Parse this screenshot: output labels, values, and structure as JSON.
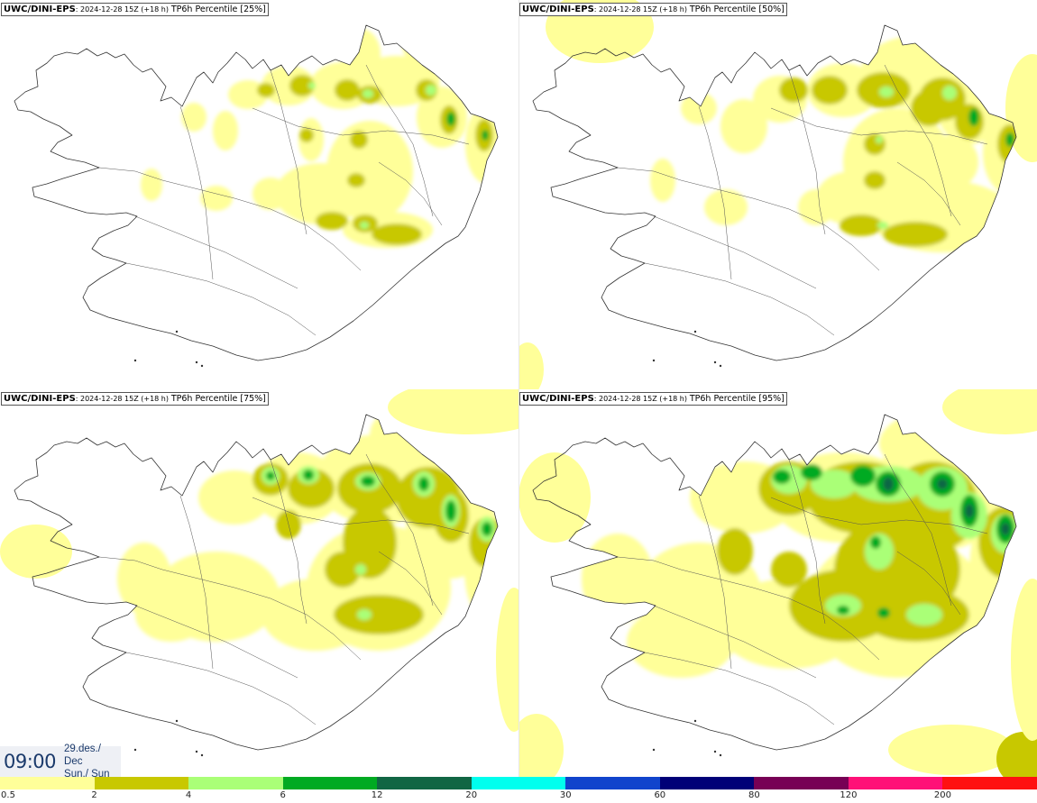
{
  "panels": [
    {
      "model": "UWC/DINI-EPS",
      "run": ": 2024-12-28 15Z (+18 h)",
      "variable": "TP6h Percentile [25%]",
      "percentile": 25
    },
    {
      "model": "UWC/DINI-EPS",
      "run": ": 2024-12-28 15Z (+18 h)",
      "variable": "TP6h Percentile [50%]",
      "percentile": 50
    },
    {
      "model": "UWC/DINI-EPS",
      "run": ": 2024-12-28 15Z (+18 h)",
      "variable": "TP6h Percentile [75%]",
      "percentile": 75
    },
    {
      "model": "UWC/DINI-EPS",
      "run": ": 2024-12-28 15Z (+18 h)",
      "variable": "TP6h Percentile [95%]",
      "percentile": 95
    }
  ],
  "valid_time": {
    "time": "09:00",
    "date": "29.des./ Dec",
    "day": "Sun./ Sun"
  },
  "legend": {
    "bins": [
      {
        "label": "0.5",
        "color": "#ffff99"
      },
      {
        "label": "2",
        "color": "#c8c800"
      },
      {
        "label": "4",
        "color": "#aaff77"
      },
      {
        "label": "6",
        "color": "#00aa22"
      },
      {
        "label": "12",
        "color": "#116644"
      },
      {
        "label": "20",
        "color": "#00ffee"
      },
      {
        "label": "30",
        "color": "#1144cc"
      },
      {
        "label": "60",
        "color": "#000077"
      },
      {
        "label": "80",
        "color": "#770055"
      },
      {
        "label": "120",
        "color": "#ff1177"
      },
      {
        "label": "200",
        "color": "#ff1111"
      }
    ]
  }
}
